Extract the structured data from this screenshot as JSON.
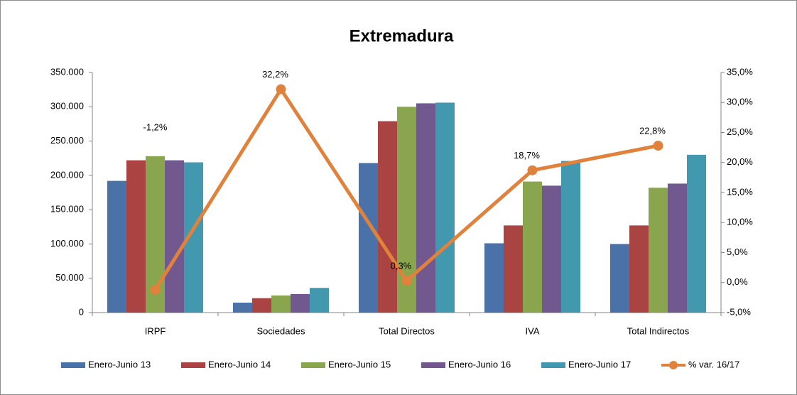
{
  "chart_data": {
    "type": "bar_line_combo",
    "title": "Extremadura",
    "categories": [
      "IRPF",
      "Sociedades",
      "Total Directos",
      "IVA",
      "Total Indirectos"
    ],
    "series": [
      {
        "name": "Enero-Junio 13",
        "color": "#4a72a8",
        "type": "bar",
        "values": [
          192000,
          14500,
          218000,
          101000,
          100000
        ]
      },
      {
        "name": "Enero-Junio 14",
        "color": "#aa4443",
        "type": "bar",
        "values": [
          222000,
          21000,
          279000,
          127000,
          127000
        ]
      },
      {
        "name": "Enero-Junio 15",
        "color": "#89a54e",
        "type": "bar",
        "values": [
          228000,
          25000,
          300000,
          191000,
          182000
        ]
      },
      {
        "name": "Enero-Junio 16",
        "color": "#71588f",
        "type": "bar",
        "values": [
          222000,
          27000,
          305000,
          185000,
          188000
        ]
      },
      {
        "name": "Enero-Junio 17",
        "color": "#4198af",
        "type": "bar",
        "values": [
          219000,
          36000,
          306000,
          221000,
          230000
        ]
      },
      {
        "name": "% var. 16/17",
        "color": "#e0823c",
        "type": "line",
        "axis": "y2",
        "values": [
          -1.2,
          32.2,
          0.3,
          18.7,
          22.8
        ],
        "value_labels": [
          "-1,2%",
          "32,2%",
          "0,3%",
          "18,7%",
          "22,8%"
        ]
      }
    ],
    "ylim": [
      0,
      350000
    ],
    "yticks": [
      0,
      {
        "value": 50000,
        "label": "50.000"
      },
      {
        "value": 100000,
        "label": "100.000"
      },
      {
        "value": 150000,
        "label": "150.000"
      },
      {
        "value": 200000,
        "label": "200.000"
      },
      {
        "value": 250000,
        "label": "250.000"
      },
      {
        "value": 300000,
        "label": "300.000"
      },
      {
        "value": 350000,
        "label": "350.000"
      }
    ],
    "y2lim": [
      -5,
      35
    ],
    "y2ticks": [
      {
        "value": -5,
        "label": "-5,0%"
      },
      {
        "value": 0,
        "label": "0,0%"
      },
      {
        "value": 5,
        "label": "5,0%"
      },
      {
        "value": 10,
        "label": "10,0%"
      },
      {
        "value": 15,
        "label": "15,0%"
      },
      {
        "value": 20,
        "label": "20,0%"
      },
      {
        "value": 25,
        "label": "25,0%"
      },
      {
        "value": 30,
        "label": "30,0%"
      },
      {
        "value": 35,
        "label": "35,0%"
      }
    ],
    "legend": "bottom"
  }
}
